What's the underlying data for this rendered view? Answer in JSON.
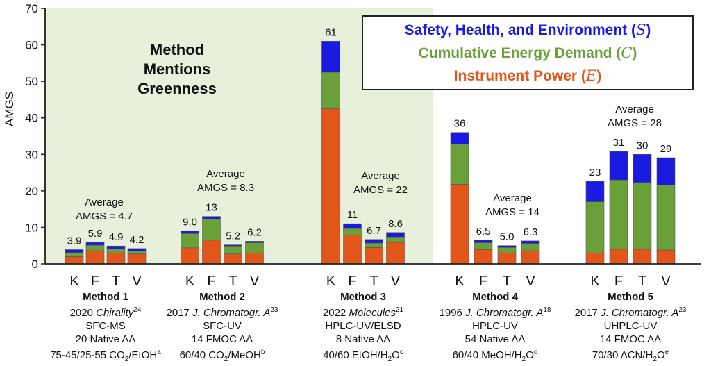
{
  "chart_data": {
    "type": "bar",
    "stacked": true,
    "ylabel": "AMGS",
    "ylim": [
      0,
      70
    ],
    "yticks": [
      0,
      10,
      20,
      30,
      40,
      50,
      60,
      70
    ],
    "grid": false,
    "legend_position": "top-right",
    "shaded_region_label": [
      "Method",
      "Mentions",
      "Greenness"
    ],
    "legend": [
      {
        "label": "Safety, Health, and Environment (",
        "symbol": "S",
        "suffix": ")",
        "color": "#1a1ae0"
      },
      {
        "label": "Cumulative Energy Demand (",
        "symbol": "C",
        "suffix": ")",
        "color": "#6aa03a"
      },
      {
        "label": "Instrument Power (",
        "symbol": "E",
        "suffix": ")",
        "color": "#e2561b"
      }
    ],
    "colors": {
      "E": "#e2561b",
      "C": "#6aa03a",
      "S": "#1a1ae0",
      "shade": "#e6f0da"
    },
    "categories": [
      "K",
      "F",
      "T",
      "V"
    ],
    "methods": [
      {
        "title": "Method 1",
        "lines": [
          {
            "pre": "2020 ",
            "ital": "Chirality",
            "post": "",
            "sup": "24"
          },
          {
            "pre": "SFC-MS"
          },
          {
            "pre": "20 Native AA"
          },
          {
            "pre": "75-45/25-55 CO",
            "sub": "2",
            "post": "/EtOH",
            "sup": "a"
          }
        ],
        "average": [
          "Average",
          "AMGS = 4.7"
        ],
        "bars": [
          {
            "cat": "K",
            "label": "3.9",
            "total": 3.9,
            "E": 2.0,
            "C": 1.1,
            "S": 0.8
          },
          {
            "cat": "F",
            "label": "5.9",
            "total": 5.9,
            "E": 3.6,
            "C": 1.5,
            "S": 0.8
          },
          {
            "cat": "T",
            "label": "4.9",
            "total": 4.9,
            "E": 3.0,
            "C": 1.1,
            "S": 0.8
          },
          {
            "cat": "V",
            "label": "4.2",
            "total": 4.2,
            "E": 2.7,
            "C": 0.8,
            "S": 0.7
          }
        ]
      },
      {
        "title": "Method 2",
        "lines": [
          {
            "pre": "2017 ",
            "ital": "J. Chromatogr. A",
            "post": "",
            "sup": "23"
          },
          {
            "pre": "SFC-UV"
          },
          {
            "pre": "14 FMOC AA"
          },
          {
            "pre": "60/40 CO",
            "sub": "2",
            "post": "/MeOH",
            "sup": "b"
          }
        ],
        "average": [
          "Average",
          "AMGS = 8.3"
        ],
        "bars": [
          {
            "cat": "K",
            "label": "9.0",
            "total": 9.0,
            "E": 4.4,
            "C": 3.9,
            "S": 0.7
          },
          {
            "cat": "F",
            "label": "13",
            "total": 13,
            "E": 6.5,
            "C": 5.8,
            "S": 0.7
          },
          {
            "cat": "T",
            "label": "5.2",
            "total": 5.2,
            "E": 2.7,
            "C": 2.2,
            "S": 0.3
          },
          {
            "cat": "V",
            "label": "6.2",
            "total": 6.2,
            "E": 3.0,
            "C": 2.8,
            "S": 0.4
          }
        ]
      },
      {
        "title": "Method 3",
        "lines": [
          {
            "pre": "2022 ",
            "ital": "Molecules",
            "post": "",
            "sup": "21"
          },
          {
            "pre": "HPLC-UV/ELSD"
          },
          {
            "pre": "8 Native AA"
          },
          {
            "pre": "40/60 EtOH/H",
            "sub": "2",
            "post": "O",
            "sup": "c"
          }
        ],
        "average": [
          "Average",
          "AMGS = 22"
        ],
        "bars": [
          {
            "cat": "K",
            "label": "61",
            "total": 61,
            "E": 42.5,
            "C": 10.0,
            "S": 8.5
          },
          {
            "cat": "F",
            "label": "11",
            "total": 11,
            "E": 7.9,
            "C": 1.8,
            "S": 1.3
          },
          {
            "cat": "T",
            "label": "6.7",
            "total": 6.7,
            "E": 4.5,
            "C": 1.2,
            "S": 1.0
          },
          {
            "cat": "V",
            "label": "8.6",
            "total": 8.6,
            "E": 5.9,
            "C": 1.5,
            "S": 1.2
          }
        ]
      },
      {
        "title": "Method 4",
        "lines": [
          {
            "pre": "1996 ",
            "ital": "J. Chromatogr. A",
            "post": "",
            "sup": "18"
          },
          {
            "pre": "HPLC-UV"
          },
          {
            "pre": "54 Native AA"
          },
          {
            "pre": "60/40 MeOH/H",
            "sub": "2",
            "post": "O",
            "sup": "d"
          }
        ],
        "average": [
          "Average",
          "AMGS = 14"
        ],
        "bars": [
          {
            "cat": "K",
            "label": "36",
            "total": 36,
            "E": 21.8,
            "C": 11.0,
            "S": 3.2
          },
          {
            "cat": "F",
            "label": "6.5",
            "total": 6.5,
            "E": 3.9,
            "C": 1.9,
            "S": 0.7
          },
          {
            "cat": "T",
            "label": "5.0",
            "total": 5.0,
            "E": 3.0,
            "C": 1.5,
            "S": 0.5
          },
          {
            "cat": "V",
            "label": "6.3",
            "total": 6.3,
            "E": 3.6,
            "C": 2.0,
            "S": 0.7
          }
        ]
      },
      {
        "title": "Method 5",
        "lines": [
          {
            "pre": "2017 ",
            "ital": "J. Chromatogr. A",
            "post": "",
            "sup": "23"
          },
          {
            "pre": "UHPLC-UV"
          },
          {
            "pre": "14 FMOC AA"
          },
          {
            "pre": "70/30 ACN/H",
            "sub": "2",
            "post": "O",
            "sup": "e"
          }
        ],
        "average": [
          "Average",
          "AMGS = 28"
        ],
        "bars": [
          {
            "cat": "K",
            "label": "23",
            "total": 22.6,
            "E": 3.0,
            "C": 14.0,
            "S": 5.6
          },
          {
            "cat": "F",
            "label": "31",
            "total": 30.8,
            "E": 4.0,
            "C": 19.0,
            "S": 7.8
          },
          {
            "cat": "T",
            "label": "30",
            "total": 30.0,
            "E": 4.0,
            "C": 18.3,
            "S": 7.7
          },
          {
            "cat": "V",
            "label": "29",
            "total": 29.1,
            "E": 3.8,
            "C": 17.8,
            "S": 7.5
          }
        ]
      }
    ]
  }
}
